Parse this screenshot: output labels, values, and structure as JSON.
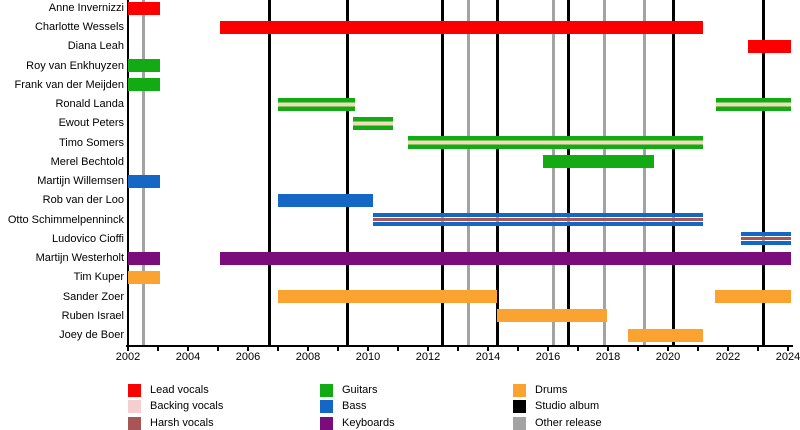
{
  "chart_data": {
    "type": "timeline",
    "description": "Band membership timeline (Gantt-style) with vertical release markers",
    "x_axis": {
      "min": 2002,
      "max": 2024.1,
      "tick_interval_years": 1,
      "label_interval_years": 2,
      "tick_labels": [
        "2002",
        "2004",
        "2006",
        "2008",
        "2010",
        "2012",
        "2014",
        "2016",
        "2018",
        "2020",
        "2022",
        "2024"
      ]
    },
    "members": [
      {
        "name": "Anne Invernizzi",
        "bars": [
          {
            "start": 2002,
            "end": 2003.05,
            "role": "lead_vocals"
          }
        ]
      },
      {
        "name": "Charlotte Wessels",
        "bars": [
          {
            "start": 2005.05,
            "end": 2021.17,
            "role": "lead_vocals"
          }
        ]
      },
      {
        "name": "Diana Leah",
        "bars": [
          {
            "start": 2022.65,
            "end": 2024.1,
            "role": "lead_vocals"
          }
        ]
      },
      {
        "name": "Roy van Enkhuyzen",
        "bars": [
          {
            "start": 2002,
            "end": 2003.05,
            "role": "guitars"
          }
        ]
      },
      {
        "name": "Frank van der Meijden",
        "bars": [
          {
            "start": 2002,
            "end": 2003.05,
            "role": "guitars"
          }
        ]
      },
      {
        "name": "Ronald Landa",
        "bars": [
          {
            "start": 2007,
            "end": 2009.57,
            "role": "guitars",
            "stripe": "backing_vocals"
          },
          {
            "start": 2021.6,
            "end": 2024.1,
            "role": "guitars",
            "stripe": "backing_vocals"
          }
        ]
      },
      {
        "name": "Ewout Peters",
        "bars": [
          {
            "start": 2009.5,
            "end": 2010.84,
            "role": "guitars",
            "stripe": "backing_vocals"
          }
        ]
      },
      {
        "name": "Timo Somers",
        "bars": [
          {
            "start": 2011.33,
            "end": 2021.17,
            "role": "guitars",
            "stripe": "backing_vocals"
          }
        ]
      },
      {
        "name": "Merel Bechtold",
        "bars": [
          {
            "start": 2015.84,
            "end": 2019.53,
            "role": "guitars"
          }
        ]
      },
      {
        "name": "Martijn Willemsen",
        "bars": [
          {
            "start": 2002,
            "end": 2003.05,
            "role": "bass"
          }
        ]
      },
      {
        "name": "Rob van der Loo",
        "bars": [
          {
            "start": 2007,
            "end": 2010.17,
            "role": "bass"
          }
        ]
      },
      {
        "name": "Otto Schimmelpenninck",
        "bars": [
          {
            "start": 2010.17,
            "end": 2021.17,
            "role": "bass",
            "stripe": "harsh_vocals"
          }
        ]
      },
      {
        "name": "Ludovico Cioffi",
        "bars": [
          {
            "start": 2022.42,
            "end": 2024.1,
            "role": "bass",
            "stripe": "harsh_vocals"
          }
        ]
      },
      {
        "name": "Martijn Westerholt",
        "bars": [
          {
            "start": 2002,
            "end": 2003.05,
            "role": "keyboards"
          },
          {
            "start": 2005.05,
            "end": 2024.1,
            "role": "keyboards"
          }
        ]
      },
      {
        "name": "Tim Kuper",
        "bars": [
          {
            "start": 2002,
            "end": 2003.05,
            "role": "drums"
          }
        ]
      },
      {
        "name": "Sander Zoer",
        "bars": [
          {
            "start": 2007,
            "end": 2014.3,
            "role": "drums"
          },
          {
            "start": 2021.55,
            "end": 2024.1,
            "role": "drums"
          }
        ]
      },
      {
        "name": "Ruben Israel",
        "bars": [
          {
            "start": 2014.3,
            "end": 2017.95,
            "role": "drums"
          }
        ]
      },
      {
        "name": "Joey de Boer",
        "bars": [
          {
            "start": 2018.68,
            "end": 2021.17,
            "role": "drums"
          }
        ]
      }
    ],
    "event_lines": {
      "studio_albums": [
        2006.73,
        2009.3,
        2012.47,
        2014.32,
        2016.67,
        2020.17,
        2023.17
      ],
      "other_releases": [
        2002.5,
        2013.35,
        2016.18,
        2017.88,
        2019.2
      ]
    },
    "legend": [
      {
        "label": "Lead vocals",
        "color_key": "lead_vocals"
      },
      {
        "label": "Backing vocals",
        "color_key": "backing_vocals"
      },
      {
        "label": "Harsh vocals",
        "color_key": "harsh_vocals"
      },
      {
        "label": "Guitars",
        "color_key": "guitars"
      },
      {
        "label": "Bass",
        "color_key": "bass"
      },
      {
        "label": "Keyboards",
        "color_key": "keyboards"
      },
      {
        "label": "Drums",
        "color_key": "drums"
      },
      {
        "label": "Studio album",
        "color_key": "studio_album"
      },
      {
        "label": "Other release",
        "color_key": "other_release"
      }
    ],
    "colors": {
      "lead_vocals": "#fa0000",
      "backing_vocals": "#f3cfcf",
      "backing_vocals_bar": "#f4dcba",
      "harsh_vocals": "#a85555",
      "guitars": "#13ab13",
      "bass": "#1467c4",
      "keyboards": "#7b0c7b",
      "drums": "#fba330",
      "studio_album": "#000000",
      "other_release": "#a3a3a3"
    }
  }
}
